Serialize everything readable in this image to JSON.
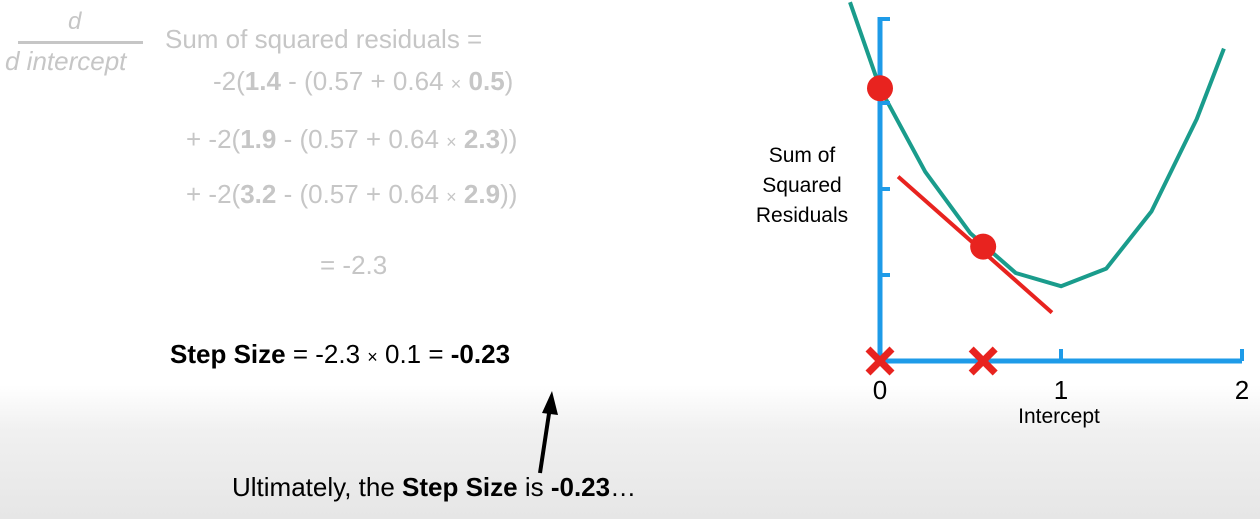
{
  "equation": {
    "fraction_numerator": "d",
    "fraction_denominator": "d intercept",
    "lhs": "Sum of squared residuals =",
    "terms": [
      {
        "prefix": "-2(",
        "observed": "1.4",
        "mid": " - (0.57 + 0.64 ",
        "times": "×",
        "x": "0.5",
        "suffix": ")"
      },
      {
        "prefix": "+ -2(",
        "observed": "1.9",
        "mid": " - (0.57 + 0.64 ",
        "times": "×",
        "x": "2.3",
        "suffix": "))"
      },
      {
        "prefix": "+ -2(",
        "observed": "3.2",
        "mid": " - (0.57 + 0.64 ",
        "times": "×",
        "x": "2.9",
        "suffix": "))"
      }
    ],
    "result": "= -2.3"
  },
  "step": {
    "label": "Step Size",
    "expr_a": " = -2.3 ",
    "times": "×",
    "expr_b": " 0.1 = ",
    "value": "-0.23"
  },
  "caption": {
    "pre": "Ultimately, the ",
    "bold1": "Step Size",
    "mid": " is ",
    "bold2": "-0.23",
    "post": "…"
  },
  "chart_data": {
    "type": "line",
    "xlabel": "Intercept",
    "ylabel": "Sum of Squared Residuals",
    "x_ticks": [
      "0",
      "1",
      "2"
    ],
    "xlim": [
      0,
      2
    ],
    "series": [
      {
        "x": [
          0,
          0.25,
          0.5,
          0.75,
          1.0,
          1.25,
          1.5,
          1.75,
          1.9
        ],
        "y": [
          3.1,
          2.15,
          1.45,
          1.0,
          0.85,
          1.05,
          1.7,
          2.75,
          3.55
        ]
      }
    ],
    "points": [
      {
        "x": 0,
        "y": 3.1
      },
      {
        "x": 0.57,
        "y": 1.3
      }
    ],
    "markers_x": [
      0,
      0.57
    ],
    "colors": {
      "axis": "#1e9be8",
      "curve": "#1a9c8c",
      "point": "#e8231f",
      "tangent": "#e8231f"
    }
  }
}
